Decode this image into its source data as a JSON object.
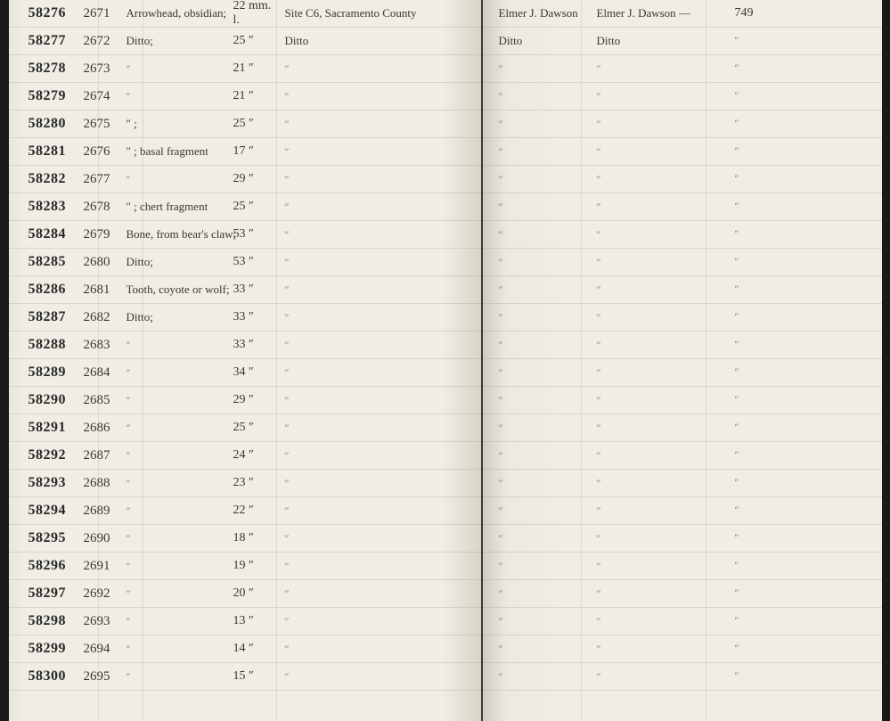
{
  "background_color": "#f0ede4",
  "rule_color": "rgba(150,140,120,0.25)",
  "header_right": {
    "collector": "Elmer J. Dawson",
    "donor": "Elmer J. Dawson —",
    "ref": "749"
  },
  "rows": [
    {
      "id": "58276",
      "sub": "2671",
      "desc": "Arrowhead, obsidian;",
      "dim": "22 mm. l.",
      "site": "Site C6, Sacramento County",
      "r1": "Elmer J. Dawson",
      "r2": "Elmer J. Dawson —",
      "r3": "749"
    },
    {
      "id": "58277",
      "sub": "2672",
      "desc": "Ditto;",
      "dim": "25 ″",
      "site": "Ditto",
      "r1": "Ditto",
      "r2": "Ditto",
      "r3": "″"
    },
    {
      "id": "58278",
      "sub": "2673",
      "desc": "″",
      "dim": "21 ″",
      "site": "″",
      "r1": "″",
      "r2": "″",
      "r3": "″"
    },
    {
      "id": "58279",
      "sub": "2674",
      "desc": "″",
      "dim": "21 ″",
      "site": "″",
      "r1": "″",
      "r2": "″",
      "r3": "″"
    },
    {
      "id": "58280",
      "sub": "2675",
      "desc": "″  ;",
      "dim": "25 ″",
      "site": "″",
      "r1": "″",
      "r2": "″",
      "r3": "″"
    },
    {
      "id": "58281",
      "sub": "2676",
      "desc": "″  ; basal fragment",
      "dim": "17 ″",
      "site": "″",
      "r1": "″",
      "r2": "″",
      "r3": "″"
    },
    {
      "id": "58282",
      "sub": "2677",
      "desc": "″",
      "dim": "29 ″",
      "site": "″",
      "r1": "″",
      "r2": "″",
      "r3": "″"
    },
    {
      "id": "58283",
      "sub": "2678",
      "desc": "″  ; chert fragment",
      "dim": "25 ″",
      "site": "″",
      "r1": "″",
      "r2": "″",
      "r3": "″"
    },
    {
      "id": "58284",
      "sub": "2679",
      "desc": "Bone, from bear's claw;",
      "dim": "53 ″",
      "site": "″",
      "r1": "″",
      "r2": "″",
      "r3": "″"
    },
    {
      "id": "58285",
      "sub": "2680",
      "desc": "Ditto;",
      "dim": "53 ″",
      "site": "″",
      "r1": "″",
      "r2": "″",
      "r3": "″"
    },
    {
      "id": "58286",
      "sub": "2681",
      "desc": "Tooth, coyote or wolf;",
      "dim": "33 ″",
      "site": "″",
      "r1": "″",
      "r2": "″",
      "r3": "″"
    },
    {
      "id": "58287",
      "sub": "2682",
      "desc": "Ditto;",
      "dim": "33 ″",
      "site": "″",
      "r1": "″",
      "r2": "″",
      "r3": "″"
    },
    {
      "id": "58288",
      "sub": "2683",
      "desc": "″",
      "dim": "33 ″",
      "site": "″",
      "r1": "″",
      "r2": "″",
      "r3": "″"
    },
    {
      "id": "58289",
      "sub": "2684",
      "desc": "″",
      "dim": "34 ″",
      "site": "″",
      "r1": "″",
      "r2": "″",
      "r3": "″"
    },
    {
      "id": "58290",
      "sub": "2685",
      "desc": "″",
      "dim": "29 ″",
      "site": "″",
      "r1": "″",
      "r2": "″",
      "r3": "″"
    },
    {
      "id": "58291",
      "sub": "2686",
      "desc": "″",
      "dim": "25 ″",
      "site": "″",
      "r1": "″",
      "r2": "″",
      "r3": "″"
    },
    {
      "id": "58292",
      "sub": "2687",
      "desc": "″",
      "dim": "24 ″",
      "site": "″",
      "r1": "″",
      "r2": "″",
      "r3": "″"
    },
    {
      "id": "58293",
      "sub": "2688",
      "desc": "″",
      "dim": "23 ″",
      "site": "″",
      "r1": "″",
      "r2": "″",
      "r3": "″"
    },
    {
      "id": "58294",
      "sub": "2689",
      "desc": "″",
      "dim": "22 ″",
      "site": "″",
      "r1": "″",
      "r2": "″",
      "r3": "″"
    },
    {
      "id": "58295",
      "sub": "2690",
      "desc": "″",
      "dim": "18 ″",
      "site": "″",
      "r1": "″",
      "r2": "″",
      "r3": "″"
    },
    {
      "id": "58296",
      "sub": "2691",
      "desc": "″",
      "dim": "19 ″",
      "site": "″",
      "r1": "″",
      "r2": "″",
      "r3": "″"
    },
    {
      "id": "58297",
      "sub": "2692",
      "desc": "″",
      "dim": "20 ″",
      "site": "″",
      "r1": "″",
      "r2": "″",
      "r3": "″"
    },
    {
      "id": "58298",
      "sub": "2693",
      "desc": "″",
      "dim": "13 ″",
      "site": "″",
      "r1": "″",
      "r2": "″",
      "r3": "″"
    },
    {
      "id": "58299",
      "sub": "2694",
      "desc": "″",
      "dim": "14 ″",
      "site": "″",
      "r1": "″",
      "r2": "″",
      "r3": "″"
    },
    {
      "id": "58300",
      "sub": "2695",
      "desc": "″",
      "dim": "15 ″",
      "site": "″",
      "r1": "″",
      "r2": "″",
      "r3": "″"
    }
  ]
}
